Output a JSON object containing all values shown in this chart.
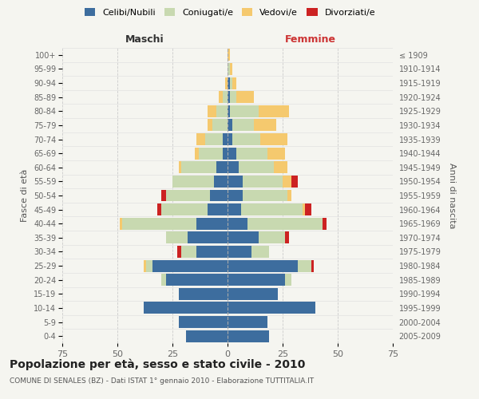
{
  "age_groups": [
    "0-4",
    "5-9",
    "10-14",
    "15-19",
    "20-24",
    "25-29",
    "30-34",
    "35-39",
    "40-44",
    "45-49",
    "50-54",
    "55-59",
    "60-64",
    "65-69",
    "70-74",
    "75-79",
    "80-84",
    "85-89",
    "90-94",
    "95-99",
    "100+"
  ],
  "birth_years": [
    "2005-2009",
    "2000-2004",
    "1995-1999",
    "1990-1994",
    "1985-1989",
    "1980-1984",
    "1975-1979",
    "1970-1974",
    "1965-1969",
    "1960-1964",
    "1955-1959",
    "1950-1954",
    "1945-1949",
    "1940-1944",
    "1935-1939",
    "1930-1934",
    "1925-1929",
    "1920-1924",
    "1915-1919",
    "1910-1914",
    "≤ 1909"
  ],
  "colors": {
    "celibi": "#3d6d9e",
    "coniugati": "#c8d9b0",
    "vedovi": "#f5c96e",
    "divorziati": "#cc2222"
  },
  "maschi": {
    "celibi": [
      19,
      22,
      38,
      22,
      28,
      34,
      14,
      18,
      14,
      9,
      8,
      6,
      5,
      2,
      2,
      0,
      0,
      0,
      0,
      0,
      0
    ],
    "coniugati": [
      0,
      0,
      0,
      0,
      2,
      3,
      7,
      10,
      34,
      21,
      20,
      19,
      16,
      11,
      8,
      7,
      5,
      2,
      0,
      0,
      0
    ],
    "vedovi": [
      0,
      0,
      0,
      0,
      0,
      1,
      0,
      0,
      1,
      0,
      0,
      0,
      1,
      2,
      4,
      2,
      4,
      2,
      1,
      0,
      0
    ],
    "divorziati": [
      0,
      0,
      0,
      0,
      0,
      0,
      2,
      0,
      0,
      2,
      2,
      0,
      0,
      0,
      0,
      0,
      0,
      0,
      0,
      0,
      0
    ]
  },
  "femmine": {
    "celibi": [
      19,
      18,
      40,
      23,
      26,
      32,
      11,
      14,
      9,
      6,
      7,
      7,
      5,
      4,
      2,
      2,
      1,
      1,
      1,
      0,
      0
    ],
    "coniugati": [
      0,
      0,
      0,
      0,
      3,
      6,
      8,
      12,
      34,
      28,
      20,
      18,
      16,
      14,
      13,
      10,
      13,
      3,
      1,
      1,
      0
    ],
    "vedovi": [
      0,
      0,
      0,
      0,
      0,
      0,
      0,
      0,
      0,
      1,
      2,
      4,
      6,
      8,
      12,
      10,
      14,
      8,
      2,
      1,
      1
    ],
    "divorziati": [
      0,
      0,
      0,
      0,
      0,
      1,
      0,
      2,
      2,
      3,
      0,
      3,
      0,
      0,
      0,
      0,
      0,
      0,
      0,
      0,
      0
    ]
  },
  "title": "Popolazione per età, sesso e stato civile - 2010",
  "subtitle": "COMUNE DI SENALES (BZ) - Dati ISTAT 1° gennaio 2010 - Elaborazione TUTTITALIA.IT",
  "xlabel_left": "Maschi",
  "xlabel_right": "Femmine",
  "ylabel_left": "Fasce di età",
  "ylabel_right": "Anni di nascita",
  "xlim": 75,
  "legend_labels": [
    "Celibi/Nubili",
    "Coniugati/e",
    "Vedovi/e",
    "Divorziati/e"
  ],
  "background_color": "#f5f5f0",
  "grid_color": "#cccccc"
}
